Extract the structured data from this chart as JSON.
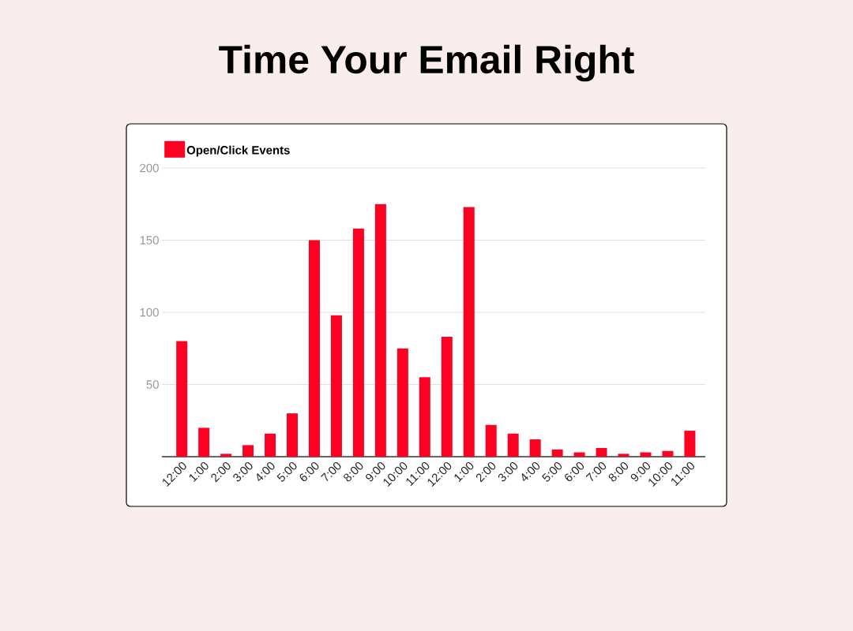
{
  "chart_data": {
    "type": "bar",
    "title": "Time Your Email Right",
    "categories": [
      "12:00",
      "1:00",
      "2:00",
      "3:00",
      "4:00",
      "5:00",
      "6:00",
      "7:00",
      "8:00",
      "9:00",
      "10:00",
      "11:00",
      "12:00",
      "1:00",
      "2:00",
      "3:00",
      "4:00",
      "5:00",
      "6:00",
      "7:00",
      "8:00",
      "9:00",
      "10:00",
      "11:00"
    ],
    "series": [
      {
        "name": "Open/Click Events",
        "color": "#ff0022",
        "values": [
          80,
          20,
          2,
          8,
          16,
          30,
          150,
          98,
          158,
          175,
          75,
          55,
          83,
          173,
          22,
          16,
          12,
          5,
          3,
          6,
          2,
          3,
          4,
          18
        ]
      }
    ],
    "ylim": [
      0,
      200
    ],
    "yticks": [
      50,
      100,
      150,
      200
    ],
    "grid": "y",
    "legend": "top left"
  }
}
